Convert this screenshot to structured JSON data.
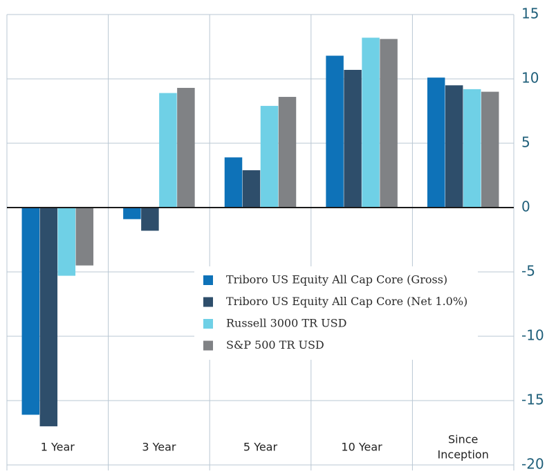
{
  "chart_data": {
    "type": "bar",
    "categories": [
      "1 Year",
      "3 Year",
      "5 Year",
      "10 Year",
      "Since Inception"
    ],
    "category_lines": [
      [
        "1 Year"
      ],
      [
        "3 Year"
      ],
      [
        "5 Year"
      ],
      [
        "10 Year"
      ],
      [
        "Since",
        "Inception"
      ]
    ],
    "series": [
      {
        "name": "Triboro US Equity All Cap Core (Gross)",
        "color": "#0e72b8",
        "values": [
          -16.1,
          -0.9,
          3.9,
          11.8,
          10.1
        ]
      },
      {
        "name": "Triboro US Equity All Cap Core (Net 1.0%)",
        "color": "#2e4e6b",
        "values": [
          -17.0,
          -1.8,
          2.9,
          10.7,
          9.5
        ]
      },
      {
        "name": "Russell 3000 TR USD",
        "color": "#6fd0e6",
        "values": [
          -5.3,
          8.9,
          7.9,
          13.2,
          9.2
        ]
      },
      {
        "name": "S&P 500 TR USD",
        "color": "#808285",
        "values": [
          -4.5,
          9.3,
          8.6,
          13.1,
          9.0
        ]
      }
    ],
    "ylim": [
      -20,
      15
    ],
    "yticks": [
      -20,
      -15,
      -10,
      -5,
      0,
      5,
      10,
      15
    ],
    "grid": true,
    "legend_position": "center-right",
    "title": "",
    "xlabel": "",
    "ylabel": ""
  }
}
